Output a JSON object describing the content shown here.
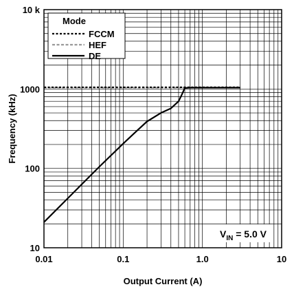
{
  "chart_data": {
    "type": "line",
    "xlabel": "Output Current (A)",
    "ylabel": "Frequency (kHz)",
    "x_scale": "log",
    "y_scale": "log",
    "xlim": [
      0.01,
      10
    ],
    "ylim": [
      10,
      10000
    ],
    "x_ticks": [
      "0.01",
      "0.1",
      "1.0",
      "10"
    ],
    "y_ticks": [
      "10",
      "100",
      "1000",
      "10 k"
    ],
    "grid": true,
    "legend": {
      "title": "Mode",
      "placement": "top-left"
    },
    "annotation": {
      "main": "V",
      "sub": "IN",
      "rest": " = 5.0 V"
    },
    "series": [
      {
        "name": "FCCM",
        "style": "dotted",
        "color": "#000000",
        "x": [
          0.01,
          0.02,
          0.05,
          0.1,
          0.2,
          0.5,
          1.0,
          2.0,
          3.0
        ],
        "y": [
          1050,
          1050,
          1050,
          1050,
          1050,
          1050,
          1050,
          1050,
          1050
        ]
      },
      {
        "name": "HEF",
        "style": "dashed",
        "color": "#999999",
        "x": [
          0.01,
          0.02,
          0.05,
          0.1,
          0.2,
          0.5,
          1.0,
          2.0,
          3.0
        ],
        "y": [
          1040,
          1040,
          1040,
          1040,
          1040,
          1040,
          1040,
          1040,
          1040
        ]
      },
      {
        "name": "DE",
        "style": "solid",
        "color": "#000000",
        "x": [
          0.01,
          0.02,
          0.05,
          0.1,
          0.15,
          0.2,
          0.3,
          0.4,
          0.5,
          0.55,
          0.6,
          0.7,
          1.0,
          2.0,
          3.0
        ],
        "y": [
          21,
          42,
          105,
          205,
          300,
          390,
          500,
          570,
          700,
          850,
          1030,
          1040,
          1040,
          1040,
          1040
        ]
      }
    ]
  }
}
